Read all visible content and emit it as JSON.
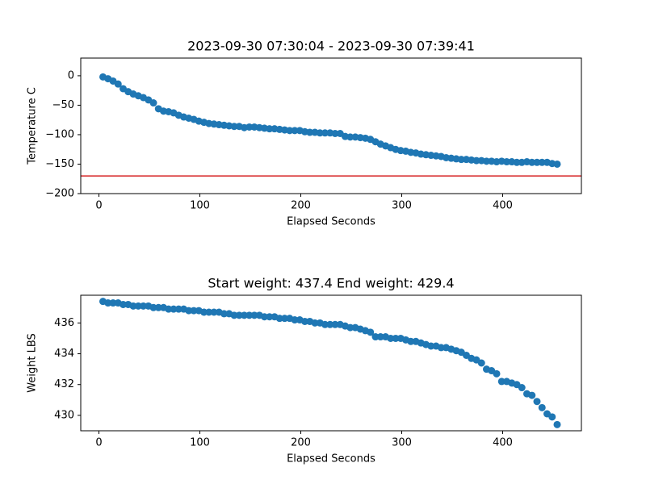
{
  "chart_data": [
    {
      "type": "scatter",
      "title": "2023-09-30 07:30:04 - 2023-09-30 07:39:41",
      "x_label": "Elapsed Seconds",
      "y_label": "Temperature C",
      "x": [
        4,
        9,
        14,
        19,
        24,
        29,
        34,
        39,
        44,
        49,
        54,
        59,
        64,
        69,
        74,
        79,
        84,
        89,
        94,
        99,
        104,
        109,
        114,
        119,
        124,
        129,
        134,
        139,
        144,
        149,
        154,
        159,
        164,
        169,
        174,
        179,
        184,
        189,
        194,
        199,
        204,
        209,
        214,
        219,
        224,
        229,
        234,
        239,
        244,
        249,
        254,
        259,
        264,
        269,
        274,
        279,
        284,
        289,
        294,
        299,
        304,
        309,
        314,
        319,
        324,
        329,
        334,
        339,
        344,
        349,
        354,
        359,
        364,
        369,
        374,
        379,
        384,
        389,
        394,
        399,
        404,
        409,
        414,
        419,
        424,
        429,
        434,
        439,
        444,
        449,
        454
      ],
      "values": [
        -2,
        -5,
        -9,
        -14,
        -22,
        -27,
        -31,
        -34,
        -37,
        -41,
        -46,
        -56,
        -60,
        -61,
        -63,
        -67,
        -70,
        -72,
        -74,
        -77,
        -79,
        -81,
        -82,
        -83,
        -84,
        -85,
        -86,
        -86,
        -88,
        -87,
        -87,
        -88,
        -89,
        -90,
        -90,
        -91,
        -92,
        -93,
        -93,
        -93,
        -95,
        -96,
        -96,
        -97,
        -97,
        -97,
        -98,
        -98,
        -103,
        -104,
        -104,
        -105,
        -106,
        -108,
        -112,
        -116,
        -119,
        -122,
        -125,
        -127,
        -128,
        -130,
        -131,
        -133,
        -134,
        -135,
        -136,
        -137,
        -139,
        -140,
        -141,
        -142,
        -142,
        -143,
        -144,
        -144,
        -145,
        -145,
        -146,
        -145,
        -146,
        -146,
        -147,
        -147,
        -146,
        -147,
        -147,
        -147,
        -147,
        -149,
        -150
      ],
      "color": "#1f77b4",
      "reference_line": {
        "y": -170,
        "color": "#d62728"
      },
      "xlim": [
        -18,
        478
      ],
      "xticks": [
        0,
        100,
        200,
        300,
        400
      ],
      "ylim": [
        -200,
        30
      ],
      "yticks": [
        {
          "value": -200,
          "label": "−200"
        },
        {
          "value": -150,
          "label": "−150"
        },
        {
          "value": -100,
          "label": "−100"
        },
        {
          "value": -50,
          "label": "−50"
        },
        0
      ]
    },
    {
      "type": "scatter",
      "title": "Start weight: 437.4 End weight: 429.4",
      "x_label": "Elapsed Seconds",
      "y_label": "Weight LBS",
      "x": [
        4,
        9,
        14,
        19,
        24,
        29,
        34,
        39,
        44,
        49,
        54,
        59,
        64,
        69,
        74,
        79,
        84,
        89,
        94,
        99,
        104,
        109,
        114,
        119,
        124,
        129,
        134,
        139,
        144,
        149,
        154,
        159,
        164,
        169,
        174,
        179,
        184,
        189,
        194,
        199,
        204,
        209,
        214,
        219,
        224,
        229,
        234,
        239,
        244,
        249,
        254,
        259,
        264,
        269,
        274,
        279,
        284,
        289,
        294,
        299,
        304,
        309,
        314,
        319,
        324,
        329,
        334,
        339,
        344,
        349,
        354,
        359,
        364,
        369,
        374,
        379,
        384,
        389,
        394,
        399,
        404,
        409,
        414,
        419,
        424,
        429,
        434,
        439,
        444,
        449,
        454
      ],
      "values": [
        437.4,
        437.3,
        437.3,
        437.3,
        437.2,
        437.2,
        437.1,
        437.1,
        437.1,
        437.1,
        437,
        437,
        437,
        436.9,
        436.9,
        436.9,
        436.9,
        436.8,
        436.8,
        436.8,
        436.7,
        436.7,
        436.7,
        436.7,
        436.6,
        436.6,
        436.5,
        436.5,
        436.5,
        436.5,
        436.5,
        436.5,
        436.4,
        436.4,
        436.4,
        436.3,
        436.3,
        436.3,
        436.2,
        436.2,
        436.1,
        436.1,
        436,
        436,
        435.9,
        435.9,
        435.9,
        435.9,
        435.8,
        435.7,
        435.7,
        435.6,
        435.5,
        435.4,
        435.1,
        435.1,
        435.1,
        435,
        435,
        435,
        434.9,
        434.8,
        434.8,
        434.7,
        434.6,
        434.5,
        434.5,
        434.4,
        434.4,
        434.3,
        434.2,
        434.1,
        433.9,
        433.7,
        433.6,
        433.4,
        433,
        432.9,
        432.7,
        432.2,
        432.2,
        432.1,
        432,
        431.8,
        431.4,
        431.3,
        430.9,
        430.5,
        430.1,
        429.9,
        429.4
      ],
      "color": "#1f77b4",
      "xlim": [
        -18,
        478
      ],
      "xticks": [
        0,
        100,
        200,
        300,
        400
      ],
      "ylim": [
        429,
        437.8
      ],
      "yticks": [
        430,
        432,
        434,
        436
      ]
    }
  ]
}
